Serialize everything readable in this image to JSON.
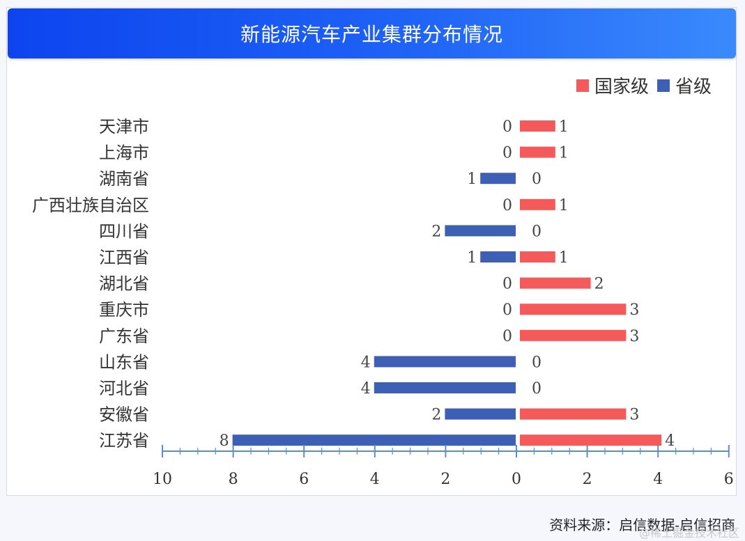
{
  "title": "新能源汽车产业集群分布情况",
  "legend": {
    "national": "国家级",
    "provincial": "省级"
  },
  "colors": {
    "national": "#f55a5a",
    "provincial": "#3d5fb4",
    "axis": "#5b8ec9"
  },
  "source": "资料来源：启信数据-启信招商",
  "watermark": "@稀土掘金技术社区",
  "chart_data": {
    "type": "bar",
    "orientation": "horizontal-butterfly",
    "title": "新能源汽车产业集群分布情况",
    "categories": [
      "天津市",
      "上海市",
      "湖南省",
      "广西壮族自治区",
      "四川省",
      "江西省",
      "湖北省",
      "重庆市",
      "广东省",
      "山东省",
      "河北省",
      "安徽省",
      "江苏省"
    ],
    "series": [
      {
        "name": "国家级",
        "values": [
          1,
          1,
          0,
          1,
          0,
          1,
          2,
          3,
          3,
          0,
          0,
          3,
          4
        ]
      },
      {
        "name": "省级",
        "values": [
          0,
          0,
          1,
          0,
          2,
          1,
          0,
          0,
          0,
          4,
          4,
          2,
          8
        ]
      }
    ],
    "x_ticks": [
      "10",
      "8",
      "6",
      "4",
      "2",
      "0",
      "2",
      "4",
      "6"
    ],
    "xlim_left": [
      0,
      10
    ],
    "xlim_right": [
      0,
      6
    ],
    "legend_position": "top-right",
    "grid": false
  }
}
